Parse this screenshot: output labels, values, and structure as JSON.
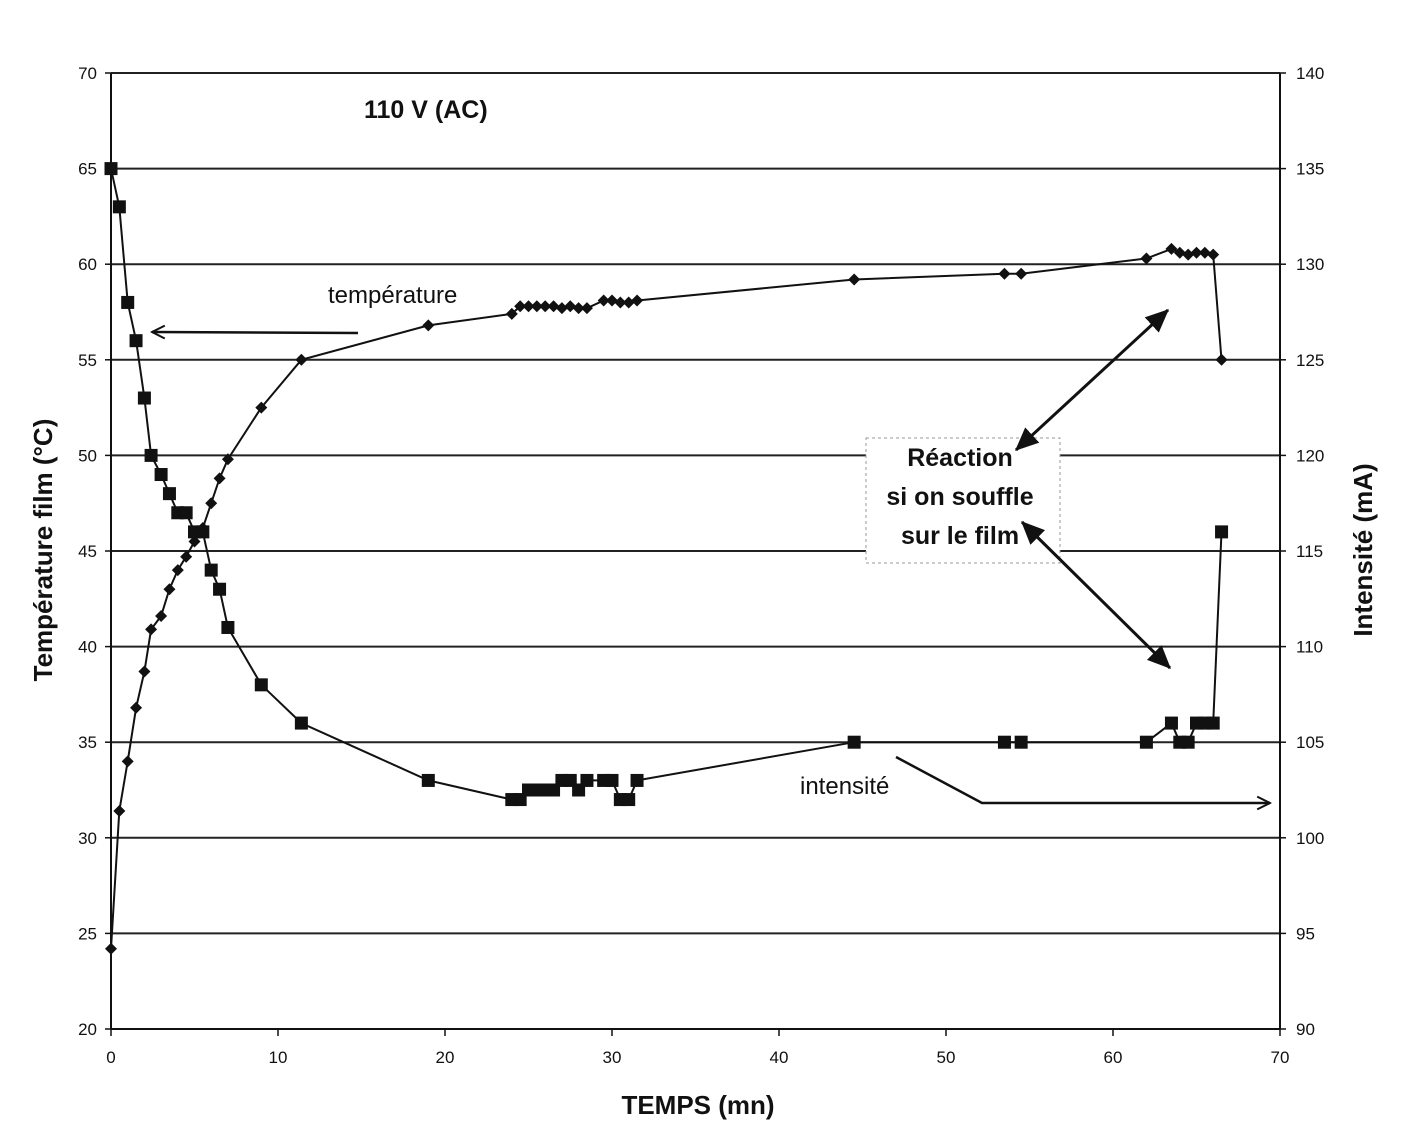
{
  "chart_data": {
    "type": "line",
    "title": "110 V (AC)",
    "xlabel": "TEMPS (mn)",
    "ylabel_left": "Température film (°C)",
    "ylabel_right": "Intensité (mA)",
    "xlim": [
      0,
      70
    ],
    "ylim_left": [
      20,
      70
    ],
    "ylim_right": [
      90,
      140
    ],
    "x_ticks": [
      "0",
      "10",
      "20",
      "30",
      "40",
      "50",
      "60",
      "70"
    ],
    "y_ticks_left": [
      "20",
      "25",
      "30",
      "35",
      "40",
      "45",
      "50",
      "55",
      "60",
      "65",
      "70"
    ],
    "y_ticks_right": [
      "90",
      "95",
      "100",
      "105",
      "110",
      "115",
      "120",
      "125",
      "130",
      "135",
      "140"
    ],
    "grid": true,
    "series": [
      {
        "name": "température",
        "axis": "left",
        "marker": "diamond",
        "x": [
          0,
          0.5,
          1,
          1.5,
          2,
          2.4,
          3,
          3.5,
          4,
          4.5,
          5,
          5.5,
          6,
          6.5,
          7,
          9,
          11.4,
          19,
          24,
          24.5,
          25,
          25.5,
          26,
          26.5,
          27,
          27.5,
          28,
          28.5,
          29.5,
          30,
          30.5,
          31,
          31.5,
          44.5,
          53.5,
          54.5,
          62,
          63.5,
          64,
          64.5,
          65,
          65.5,
          66,
          66.5
        ],
        "values": [
          24.2,
          31.4,
          34,
          36.8,
          38.7,
          40.9,
          41.6,
          43,
          44,
          44.7,
          45.5,
          46.2,
          47.5,
          48.8,
          49.8,
          52.5,
          55,
          56.8,
          57.4,
          57.8,
          57.8,
          57.8,
          57.8,
          57.8,
          57.7,
          57.8,
          57.7,
          57.7,
          58.1,
          58.1,
          58,
          58,
          58.1,
          59.2,
          59.5,
          59.5,
          60.3,
          60.8,
          60.6,
          60.5,
          60.6,
          60.6,
          60.5,
          55
        ]
      },
      {
        "name": "intensité",
        "axis": "right",
        "marker": "square",
        "x": [
          0,
          0.5,
          1,
          1.5,
          2,
          2.4,
          3,
          3.5,
          4,
          4.5,
          5,
          5.5,
          6,
          6.5,
          7,
          9,
          11.4,
          19,
          24,
          24.5,
          25,
          25.5,
          26,
          26.5,
          27,
          27.5,
          28,
          28.5,
          29.5,
          30,
          30.5,
          31,
          31.5,
          44.5,
          53.5,
          54.5,
          62,
          63.5,
          64,
          64.5,
          65,
          65.5,
          66,
          66.5
        ],
        "values": [
          135,
          133,
          128,
          126,
          123,
          120,
          119,
          118,
          117,
          117,
          116,
          116,
          114,
          113,
          111,
          108,
          106,
          103,
          102,
          102,
          102.5,
          102.5,
          102.5,
          102.5,
          103,
          103,
          102.5,
          103,
          103,
          103,
          102,
          102,
          103,
          105,
          105,
          105,
          105,
          106,
          105,
          105,
          106,
          106,
          106,
          116
        ]
      }
    ],
    "annotations": {
      "temperature_label": "température",
      "intensity_label": "intensité",
      "reaction_line1": "Réaction",
      "reaction_line2": "si on souffle",
      "reaction_line3": "sur le film"
    }
  }
}
